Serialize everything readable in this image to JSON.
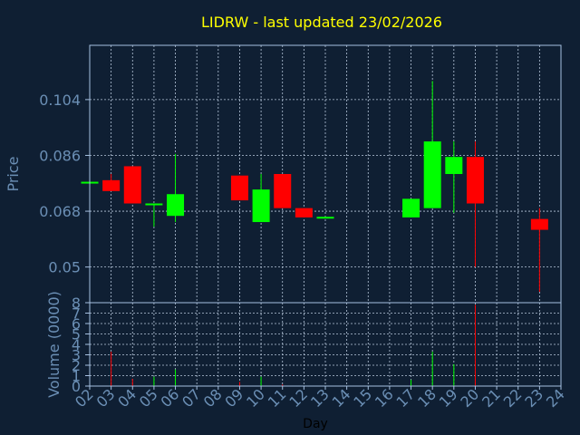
{
  "colors": {
    "background": "#0f1f33",
    "axis": "#a6c0e0",
    "grid": "#b8c8dc",
    "title": "#ffff00",
    "label": "#6b8fb5",
    "bullish": "#00ff00",
    "bearish": "#ff0000"
  },
  "chart_data": {
    "type": "candlestick",
    "title": "LIDRW - last updated 23/02/2026",
    "xlabel": "Day",
    "ylabel_price": "Price",
    "ylabel_volume": "Volume (0000)",
    "x_ticks": [
      "02",
      "03",
      "04",
      "05",
      "06",
      "07",
      "08",
      "09",
      "10",
      "11",
      "12",
      "13",
      "14",
      "15",
      "16",
      "17",
      "18",
      "19",
      "20",
      "21",
      "22",
      "23",
      "24"
    ],
    "x_range": [
      2,
      24
    ],
    "price_ticks": [
      "0.104",
      "0.086",
      "0.068",
      "0.05"
    ],
    "price_tick_values": [
      0.104,
      0.086,
      0.068,
      0.05
    ],
    "price_range": [
      0.0385,
      0.1215
    ],
    "volume_ticks": [
      "0",
      "1",
      "2",
      "3",
      "4",
      "5",
      "6",
      "7",
      "8"
    ],
    "volume_range": [
      0,
      8
    ],
    "grid": true,
    "candles": [
      {
        "day": 2,
        "open": 0.0775,
        "close": 0.0775,
        "high": 0.0775,
        "low": 0.0775,
        "volume": 0
      },
      {
        "day": 3,
        "open": 0.078,
        "close": 0.0745,
        "high": 0.08,
        "low": 0.0745,
        "volume": 3.3
      },
      {
        "day": 4,
        "open": 0.0825,
        "close": 0.0705,
        "high": 0.0825,
        "low": 0.0705,
        "volume": 0.7
      },
      {
        "day": 5,
        "open": 0.07,
        "close": 0.0705,
        "high": 0.0705,
        "low": 0.063,
        "volume": 0.9
      },
      {
        "day": 6,
        "open": 0.0665,
        "close": 0.0735,
        "high": 0.0865,
        "low": 0.0645,
        "volume": 1.6
      },
      {
        "day": 9,
        "open": 0.0795,
        "close": 0.0715,
        "high": 0.0795,
        "low": 0.0715,
        "volume": 0.4
      },
      {
        "day": 10,
        "open": 0.0645,
        "close": 0.075,
        "high": 0.08,
        "low": 0.0645,
        "volume": 0.9
      },
      {
        "day": 11,
        "open": 0.08,
        "close": 0.069,
        "high": 0.08,
        "low": 0.069,
        "volume": 0.15
      },
      {
        "day": 12,
        "open": 0.069,
        "close": 0.066,
        "high": 0.069,
        "low": 0.066,
        "volume": 0
      },
      {
        "day": 13,
        "open": 0.066,
        "close": 0.0662,
        "high": 0.0662,
        "low": 0.066,
        "volume": 0
      },
      {
        "day": 17,
        "open": 0.066,
        "close": 0.072,
        "high": 0.072,
        "low": 0.066,
        "volume": 0.6
      },
      {
        "day": 18,
        "open": 0.069,
        "close": 0.0905,
        "high": 0.11,
        "low": 0.069,
        "volume": 3.3
      },
      {
        "day": 19,
        "open": 0.08,
        "close": 0.0855,
        "high": 0.0905,
        "low": 0.0675,
        "volume": 2.1
      },
      {
        "day": 20,
        "open": 0.0855,
        "close": 0.0705,
        "high": 0.0905,
        "low": 0.05,
        "volume": 7.8
      },
      {
        "day": 23,
        "open": 0.0655,
        "close": 0.062,
        "high": 0.069,
        "low": 0.042,
        "volume": 0
      }
    ]
  }
}
